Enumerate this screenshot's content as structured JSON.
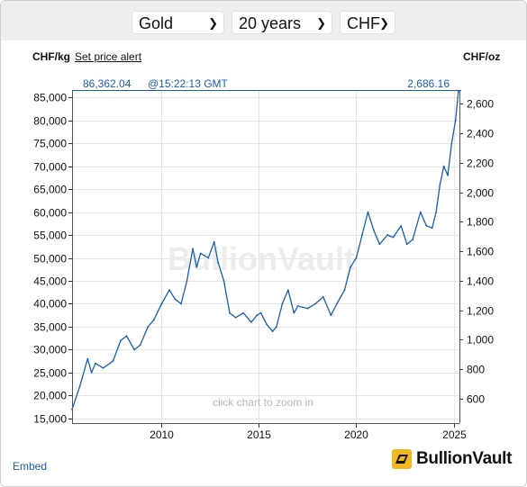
{
  "controls": {
    "metal": "Gold",
    "period": "20 years",
    "currency": "CHF"
  },
  "header": {
    "unit_left": "CHF/kg",
    "alert_link": "Set price alert",
    "unit_right": "CHF/oz",
    "current_kg": "86,362.04",
    "time": "@15:22:13 GMT",
    "current_oz": "2,686.16"
  },
  "watermark": "BullionVault",
  "zoom_hint": "click chart to zoom in",
  "footer": {
    "embed": "Embed",
    "brand": "BullionVault"
  },
  "colors": {
    "line": "#1a5dad",
    "grid": "#e5e5e5",
    "logo_gold": "#f2b81c"
  },
  "chart_data": {
    "type": "line",
    "left_axis_label": "CHF/kg",
    "right_axis_label": "CHF/oz",
    "xlim": [
      2005.4,
      2025.3
    ],
    "ylim_left": [
      14000,
      86400
    ],
    "ylim_right": [
      435.4,
      2687.2
    ],
    "x_ticks": [
      "2010",
      "2015",
      "2020",
      "2025"
    ],
    "y_ticks_left": [
      "15,000",
      "20,000",
      "25,000",
      "30,000",
      "35,000",
      "40,000",
      "45,000",
      "50,000",
      "55,000",
      "60,000",
      "65,000",
      "70,000",
      "75,000",
      "80,000",
      "85,000"
    ],
    "y_ticks_right": [
      "600",
      "800",
      "1,000",
      "1,200",
      "1,400",
      "1,600",
      "1,800",
      "2,000",
      "2,200",
      "2,400",
      "2,600"
    ],
    "grid": true,
    "series": [
      {
        "x": [
          2005.4,
          2005.8,
          2006.2,
          2006.4,
          2006.6,
          2007.0,
          2007.5,
          2007.9,
          2008.2,
          2008.6,
          2008.9,
          2009.3,
          2009.6,
          2010.0,
          2010.4,
          2010.7,
          2011.0,
          2011.3,
          2011.6,
          2011.8,
          2012.0,
          2012.4,
          2012.7,
          2012.9,
          2013.2,
          2013.5,
          2013.8,
          2014.2,
          2014.6,
          2014.9,
          2015.1,
          2015.4,
          2015.7,
          2015.9,
          2016.2,
          2016.5,
          2016.8,
          2017.0,
          2017.5,
          2017.9,
          2018.3,
          2018.7,
          2019.0,
          2019.4,
          2019.7,
          2020.0,
          2020.3,
          2020.6,
          2020.9,
          2021.2,
          2021.6,
          2021.9,
          2022.3,
          2022.6,
          2022.9,
          2023.3,
          2023.6,
          2023.9,
          2024.1,
          2024.3,
          2024.5,
          2024.7,
          2024.9,
          2025.1,
          2025.25
        ],
        "y": [
          17000,
          22000,
          28000,
          25000,
          27000,
          26000,
          27500,
          32000,
          33000,
          30000,
          31000,
          35000,
          36500,
          40000,
          43000,
          41000,
          40000,
          45000,
          52000,
          48000,
          51000,
          50000,
          53500,
          49000,
          45000,
          38000,
          37000,
          38000,
          36000,
          37500,
          38000,
          35500,
          34000,
          35000,
          40000,
          43000,
          38000,
          39500,
          39000,
          40000,
          41500,
          37500,
          40000,
          43000,
          48000,
          50000,
          55000,
          60000,
          56000,
          53000,
          55000,
          54500,
          57000,
          53000,
          54000,
          60000,
          57000,
          56500,
          60000,
          66000,
          70000,
          68000,
          75000,
          80000,
          86362
        ]
      }
    ]
  }
}
